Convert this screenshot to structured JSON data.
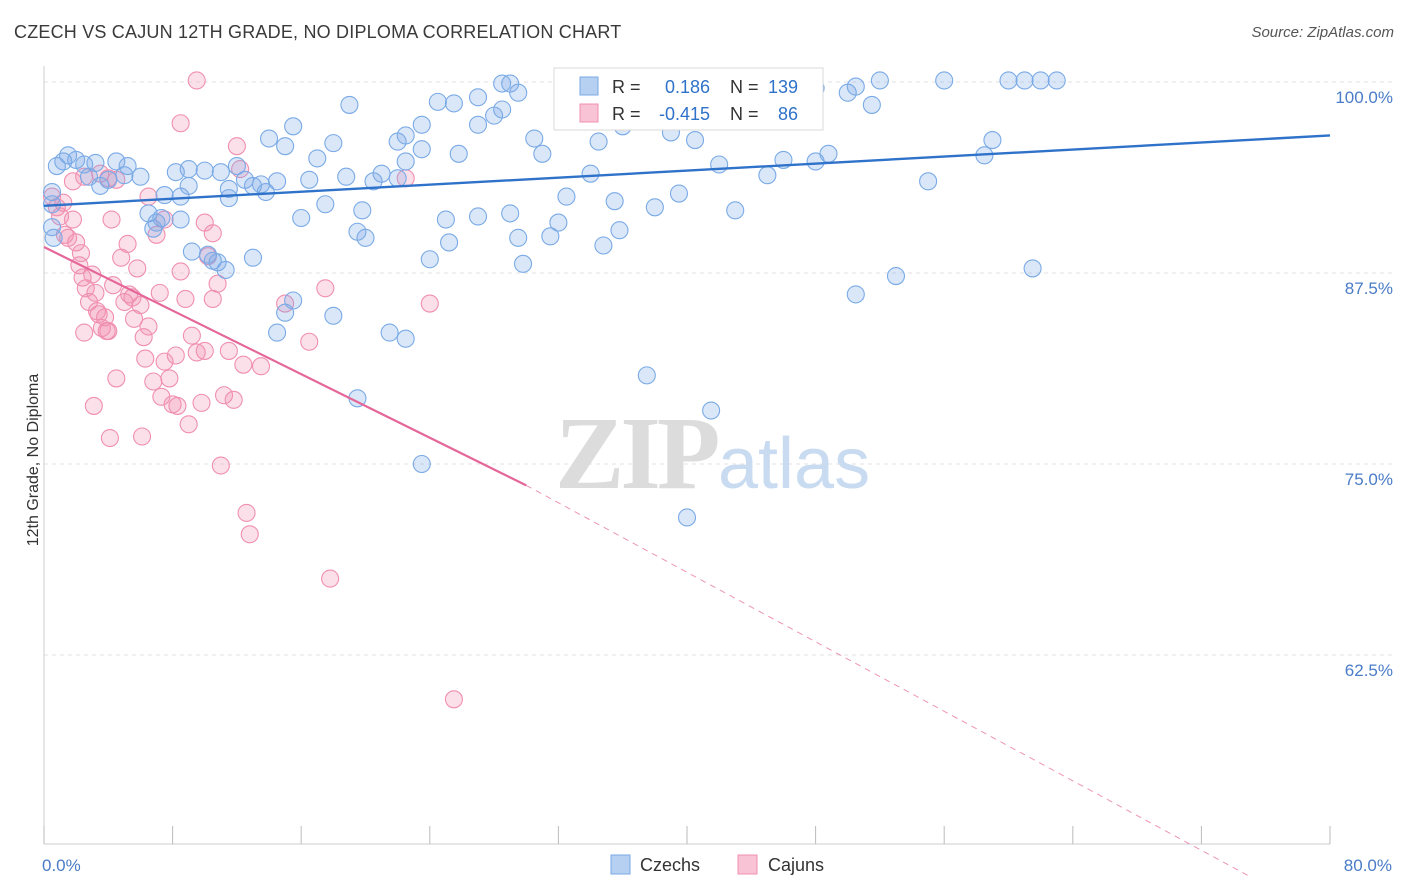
{
  "header": {
    "title": "CZECH VS CAJUN 12TH GRADE, NO DIPLOMA CORRELATION CHART",
    "source": "Source: ZipAtlas.com"
  },
  "watermark": {
    "zip": "ZIP",
    "atlas": "atlas"
  },
  "legend": {
    "r_label": "R =",
    "n_label": "N =",
    "czechs": {
      "r": "0.186",
      "n": "139"
    },
    "cajuns": {
      "r": "-0.415",
      "n": "86"
    }
  },
  "bottom_legend": {
    "czechs": "Czechs",
    "cajuns": "Cajuns"
  },
  "chart_data": {
    "type": "scatter",
    "title": "CZECH VS CAJUN 12TH GRADE, NO DIPLOMA CORRELATION CHART",
    "ylabel": "12th Grade, No Diploma",
    "xlabel": "",
    "x_tick_labels": [
      "0.0%",
      "80.0%"
    ],
    "y_tick_labels": [
      "100.0%",
      "87.5%",
      "75.0%",
      "62.5%"
    ],
    "y_ticks": [
      100,
      87.5,
      75,
      62.5
    ],
    "xlim": [
      0,
      80
    ],
    "ylim": [
      50,
      101.2
    ],
    "grid": true,
    "colors": {
      "czechs": "#7aaae6",
      "czechs_line": "#2f72c9",
      "cajuns": "#f08fb0",
      "cajuns_line": "#e5679a",
      "tick": "#4a7cc7"
    },
    "series": [
      {
        "name": "Czechs",
        "trend": {
          "x0": 0,
          "y0": 91.9,
          "x1": 80,
          "y1": 96.5
        },
        "points": [
          [
            0.5,
            92.8
          ],
          [
            0.8,
            94.5
          ],
          [
            1.2,
            94.8
          ],
          [
            1.5,
            95.2
          ],
          [
            2.0,
            94.9
          ],
          [
            2.5,
            94.6
          ],
          [
            3.2,
            94.7
          ],
          [
            4.5,
            94.8
          ],
          [
            5.2,
            94.5
          ],
          [
            2.8,
            93.8
          ],
          [
            3.5,
            93.2
          ],
          [
            4.0,
            93.6
          ],
          [
            5.0,
            93.9
          ],
          [
            6.0,
            93.8
          ],
          [
            7.5,
            92.6
          ],
          [
            8.5,
            92.5
          ],
          [
            9.0,
            93.2
          ],
          [
            8.2,
            94.1
          ],
          [
            9.0,
            94.3
          ],
          [
            10.0,
            94.2
          ],
          [
            11.0,
            94.1
          ],
          [
            11.5,
            92.4
          ],
          [
            12.0,
            94.5
          ],
          [
            12.5,
            93.6
          ],
          [
            13.0,
            93.2
          ],
          [
            13.5,
            93.3
          ],
          [
            14.5,
            93.5
          ],
          [
            15.0,
            95.8
          ],
          [
            14.0,
            96.3
          ],
          [
            13.8,
            92.8
          ],
          [
            6.5,
            91.4
          ],
          [
            6.8,
            90.4
          ],
          [
            7.0,
            90.8
          ],
          [
            7.3,
            91.1
          ],
          [
            8.5,
            91.0
          ],
          [
            9.2,
            88.9
          ],
          [
            10.2,
            88.7
          ],
          [
            10.8,
            88.2
          ],
          [
            11.3,
            87.7
          ],
          [
            15.5,
            97.1
          ],
          [
            17.0,
            95.0
          ],
          [
            16.5,
            93.6
          ],
          [
            16.0,
            91.1
          ],
          [
            17.5,
            92.0
          ],
          [
            18.0,
            96.0
          ],
          [
            19.5,
            90.2
          ],
          [
            19.8,
            91.6
          ],
          [
            20.0,
            89.8
          ],
          [
            19.0,
            98.5
          ],
          [
            18.8,
            93.8
          ],
          [
            20.5,
            93.5
          ],
          [
            21.0,
            94.0
          ],
          [
            22.0,
            93.7
          ],
          [
            22.0,
            96.1
          ],
          [
            22.5,
            94.8
          ],
          [
            22.5,
            96.5
          ],
          [
            23.5,
            97.2
          ],
          [
            23.5,
            95.6
          ],
          [
            24.5,
            98.7
          ],
          [
            25.5,
            98.6
          ],
          [
            25.8,
            95.3
          ],
          [
            25.0,
            91.0
          ],
          [
            25.2,
            89.5
          ],
          [
            24.0,
            88.4
          ],
          [
            27.0,
            97.2
          ],
          [
            27.0,
            91.2
          ],
          [
            28.0,
            97.8
          ],
          [
            28.5,
            98.2
          ],
          [
            29.0,
            99.9
          ],
          [
            29.5,
            99.3
          ],
          [
            28.5,
            99.9
          ],
          [
            29.5,
            89.8
          ],
          [
            29.8,
            88.1
          ],
          [
            30.5,
            96.3
          ],
          [
            31.0,
            95.3
          ],
          [
            31.5,
            89.9
          ],
          [
            32.0,
            90.8
          ],
          [
            32.5,
            92.5
          ],
          [
            33.0,
            98.6
          ],
          [
            34.0,
            94.0
          ],
          [
            34.5,
            96.1
          ],
          [
            34.8,
            89.3
          ],
          [
            35.5,
            92.2
          ],
          [
            35.8,
            90.3
          ],
          [
            36.0,
            97.1
          ],
          [
            36.5,
            99.0
          ],
          [
            37.0,
            100.2
          ],
          [
            37.5,
            98.5
          ],
          [
            38.0,
            91.8
          ],
          [
            39.0,
            96.7
          ],
          [
            39.5,
            92.7
          ],
          [
            40.0,
            99.2
          ],
          [
            40.5,
            96.2
          ],
          [
            40.5,
            100.2
          ],
          [
            42.0,
            94.6
          ],
          [
            41.5,
            98.4
          ],
          [
            43.0,
            91.6
          ],
          [
            43.5,
            99.0
          ],
          [
            45.0,
            93.9
          ],
          [
            46.0,
            94.9
          ],
          [
            47.0,
            100.0
          ],
          [
            48.0,
            94.8
          ],
          [
            48.0,
            99.6
          ],
          [
            48.8,
            95.3
          ],
          [
            50.0,
            99.3
          ],
          [
            50.5,
            99.7
          ],
          [
            50.5,
            86.1
          ],
          [
            51.5,
            98.5
          ],
          [
            52.0,
            100.1
          ],
          [
            53.0,
            87.3
          ],
          [
            56.0,
            100.1
          ],
          [
            55.0,
            93.5
          ],
          [
            58.5,
            95.2
          ],
          [
            59.0,
            96.2
          ],
          [
            60.0,
            100.1
          ],
          [
            61.0,
            100.1
          ],
          [
            62.0,
            100.1
          ],
          [
            63.0,
            100.1
          ],
          [
            61.5,
            87.8
          ],
          [
            29.0,
            91.4
          ],
          [
            27.0,
            99.0
          ],
          [
            13.0,
            88.5
          ],
          [
            15.0,
            84.9
          ],
          [
            14.5,
            83.6
          ],
          [
            15.5,
            85.7
          ],
          [
            18.0,
            84.7
          ],
          [
            21.5,
            83.6
          ],
          [
            22.5,
            83.2
          ],
          [
            19.5,
            79.3
          ],
          [
            23.5,
            75.0
          ],
          [
            37.5,
            80.8
          ],
          [
            41.5,
            78.5
          ],
          [
            40.0,
            71.5
          ],
          [
            10.5,
            88.3
          ],
          [
            11.5,
            93.0
          ],
          [
            0.5,
            92.0
          ],
          [
            0.5,
            90.5
          ],
          [
            0.6,
            89.8
          ]
        ]
      },
      {
        "name": "Cajuns",
        "trend": {
          "x0": 0,
          "y0": 89.2,
          "x1": 30,
          "y1": 73.6,
          "dash_x1": 80,
          "dash_y1": 48.0
        },
        "points": [
          [
            0.5,
            92.5
          ],
          [
            0.8,
            91.8
          ],
          [
            1.0,
            91.2
          ],
          [
            1.2,
            92.1
          ],
          [
            1.5,
            89.8
          ],
          [
            1.8,
            91.0
          ],
          [
            2.0,
            89.5
          ],
          [
            2.2,
            88.0
          ],
          [
            2.4,
            87.2
          ],
          [
            2.6,
            86.5
          ],
          [
            2.8,
            85.6
          ],
          [
            3.0,
            87.4
          ],
          [
            3.2,
            86.2
          ],
          [
            3.4,
            84.8
          ],
          [
            3.6,
            83.9
          ],
          [
            3.8,
            84.6
          ],
          [
            4.0,
            83.7
          ],
          [
            4.2,
            91.0
          ],
          [
            4.5,
            93.6
          ],
          [
            4.8,
            88.5
          ],
          [
            5.0,
            85.6
          ],
          [
            5.2,
            89.4
          ],
          [
            5.5,
            85.9
          ],
          [
            5.8,
            87.8
          ],
          [
            6.0,
            85.4
          ],
          [
            6.2,
            83.3
          ],
          [
            6.5,
            84.0
          ],
          [
            6.8,
            80.4
          ],
          [
            7.0,
            90.0
          ],
          [
            7.2,
            86.2
          ],
          [
            7.5,
            81.7
          ],
          [
            7.8,
            80.6
          ],
          [
            8.0,
            78.9
          ],
          [
            8.2,
            82.1
          ],
          [
            8.5,
            87.6
          ],
          [
            8.8,
            85.8
          ],
          [
            9.0,
            77.6
          ],
          [
            9.2,
            83.4
          ],
          [
            9.5,
            82.3
          ],
          [
            9.8,
            79.0
          ],
          [
            10.0,
            82.4
          ],
          [
            10.2,
            88.6
          ],
          [
            10.5,
            90.1
          ],
          [
            10.8,
            86.8
          ],
          [
            11.0,
            74.9
          ],
          [
            11.2,
            79.5
          ],
          [
            11.5,
            82.4
          ],
          [
            11.8,
            79.2
          ],
          [
            12.0,
            95.8
          ],
          [
            12.2,
            94.3
          ],
          [
            12.4,
            81.5
          ],
          [
            12.6,
            71.8
          ],
          [
            12.8,
            70.4
          ],
          [
            13.5,
            81.4
          ],
          [
            15.0,
            85.5
          ],
          [
            16.5,
            83.0
          ],
          [
            17.5,
            86.5
          ],
          [
            17.8,
            67.5
          ],
          [
            22.5,
            93.7
          ],
          [
            24.0,
            85.5
          ],
          [
            25.5,
            59.6
          ],
          [
            8.5,
            97.3
          ],
          [
            9.5,
            100.1
          ],
          [
            10.0,
            90.8
          ],
          [
            6.5,
            92.5
          ],
          [
            7.5,
            91.0
          ],
          [
            2.5,
            93.8
          ],
          [
            3.5,
            94.0
          ],
          [
            4.0,
            93.7
          ],
          [
            1.8,
            93.5
          ],
          [
            1.3,
            90.0
          ],
          [
            2.3,
            88.8
          ],
          [
            3.3,
            85.0
          ],
          [
            4.3,
            86.7
          ],
          [
            5.3,
            86.1
          ],
          [
            6.3,
            81.9
          ],
          [
            7.3,
            79.4
          ],
          [
            8.3,
            78.8
          ],
          [
            3.1,
            78.8
          ],
          [
            4.1,
            76.7
          ],
          [
            6.1,
            76.8
          ],
          [
            4.5,
            80.6
          ],
          [
            2.5,
            83.6
          ],
          [
            3.9,
            83.7
          ],
          [
            5.6,
            84.5
          ],
          [
            10.5,
            85.8
          ]
        ]
      }
    ]
  }
}
